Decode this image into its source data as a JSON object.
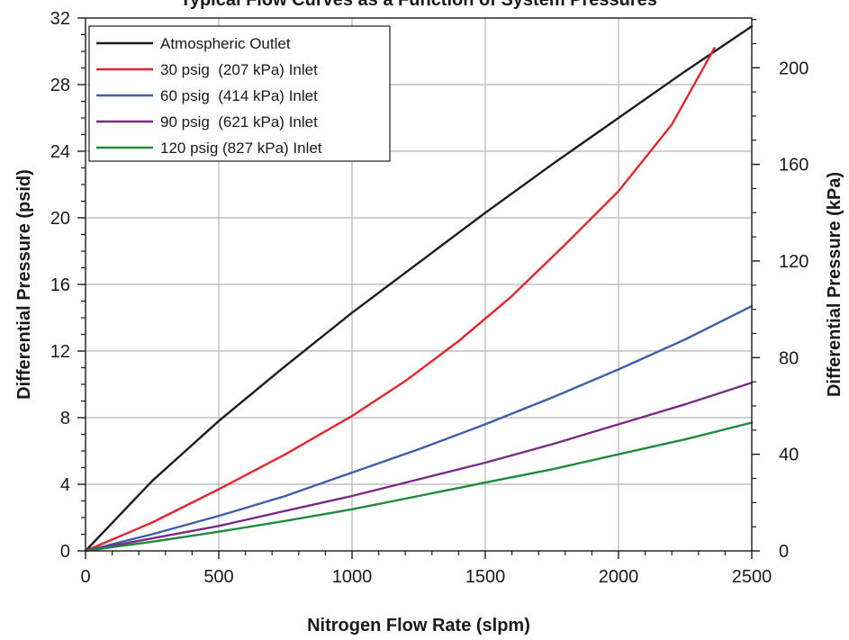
{
  "chart_data": {
    "type": "line",
    "title": "Typical Flow Curves as a Function of System Pressures",
    "xlabel": "Nitrogen Flow Rate (slpm)",
    "ylabel": "Differential Pressure (psid)",
    "ylabel_right": "Differential Pressure (kPa)",
    "xlim": [
      0,
      2500
    ],
    "ylim": [
      0,
      32
    ],
    "ylim_right": [
      0,
      220.6
    ],
    "x_ticks": [
      0,
      500,
      1000,
      1500,
      2000,
      2500
    ],
    "y_ticks": [
      0,
      4,
      8,
      12,
      16,
      20,
      24,
      28,
      32
    ],
    "y_ticks_right": [
      0,
      40,
      80,
      120,
      160,
      200
    ],
    "grid": true,
    "legend_position": "top-left",
    "series": [
      {
        "name": "Atmospheric Outlet",
        "color": "#1c1c1c",
        "x": [
          0,
          250,
          500,
          750,
          1000,
          1250,
          1500,
          1750,
          2000,
          2250,
          2500
        ],
        "y": [
          0,
          4.2,
          7.8,
          11.1,
          14.3,
          17.3,
          20.3,
          23.2,
          26.0,
          28.8,
          31.5
        ]
      },
      {
        "name": "30 psig  (207 kPa) Inlet",
        "color": "#e3262b",
        "x": [
          0,
          250,
          500,
          750,
          1000,
          1200,
          1400,
          1600,
          1800,
          2000,
          2200,
          2360
        ],
        "y": [
          0,
          1.7,
          3.7,
          5.8,
          8.1,
          10.2,
          12.6,
          15.3,
          18.4,
          21.6,
          25.6,
          30.2
        ]
      },
      {
        "name": "60 psig  (414 kPa) Inlet",
        "color": "#3d5fa8",
        "x": [
          0,
          250,
          500,
          750,
          1000,
          1250,
          1500,
          1750,
          2000,
          2250,
          2500
        ],
        "y": [
          0,
          1.0,
          2.1,
          3.3,
          4.7,
          6.1,
          7.6,
          9.2,
          10.9,
          12.7,
          14.7
        ]
      },
      {
        "name": "90 psig  (621 kPa) Inlet",
        "color": "#7a2b86",
        "x": [
          0,
          250,
          500,
          750,
          1000,
          1250,
          1500,
          1750,
          2000,
          2250,
          2500
        ],
        "y": [
          0,
          0.75,
          1.5,
          2.4,
          3.3,
          4.3,
          5.3,
          6.4,
          7.6,
          8.8,
          10.1
        ]
      },
      {
        "name": "120 psig (827 kPa) Inlet",
        "color": "#1f8a3c",
        "x": [
          0,
          250,
          500,
          750,
          1000,
          1250,
          1500,
          1750,
          2000,
          2250,
          2500
        ],
        "y": [
          0,
          0.55,
          1.15,
          1.8,
          2.5,
          3.3,
          4.1,
          4.9,
          5.8,
          6.7,
          7.7
        ]
      }
    ]
  }
}
